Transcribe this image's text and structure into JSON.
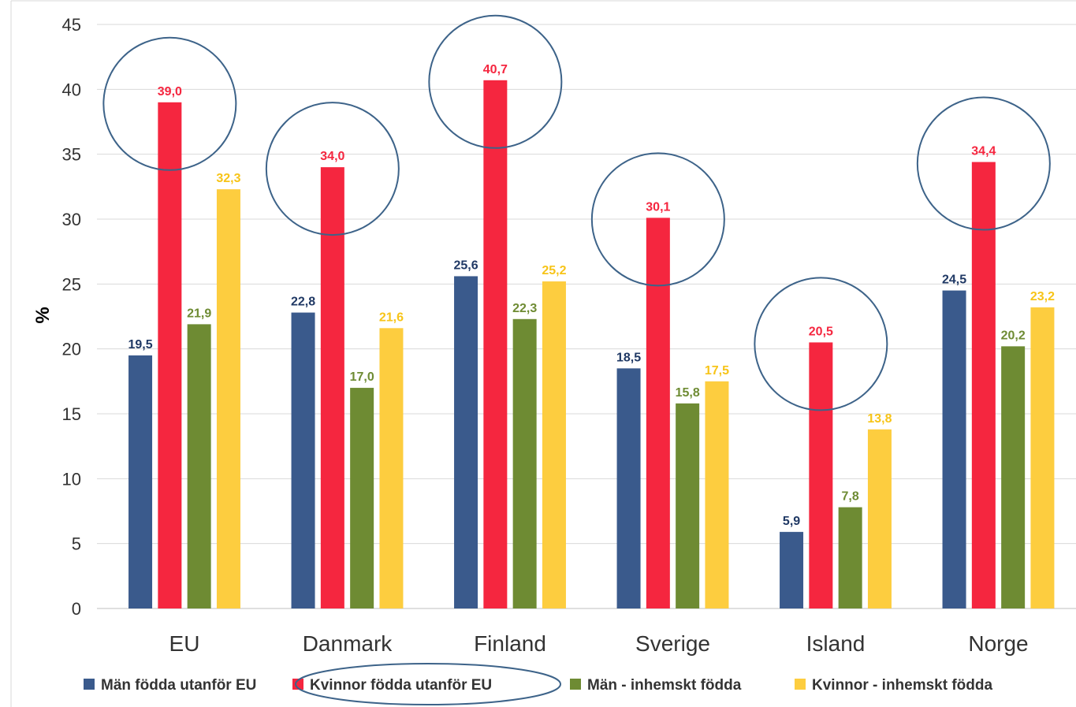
{
  "chart_data": {
    "type": "bar",
    "title": "",
    "xlabel": "",
    "ylabel": "%",
    "ylim": [
      0,
      45
    ],
    "yticks": [
      0,
      5,
      10,
      15,
      20,
      25,
      30,
      35,
      40,
      45
    ],
    "grid": true,
    "legend_position": "bottom",
    "categories": [
      "EU",
      "Danmark",
      "Finland",
      "Sverige",
      "Island",
      "Norge"
    ],
    "series": [
      {
        "name": "Män födda utanför EU",
        "color": "#3a5a8c",
        "label_color": "#1f3864",
        "values": [
          19.5,
          22.8,
          25.6,
          18.5,
          5.9,
          24.5
        ],
        "labels": [
          "19,5",
          "22,8",
          "25,6",
          "18,5",
          "5,9",
          "24,5"
        ]
      },
      {
        "name": "Kvinnor födda utanför EU",
        "color": "#f5263f",
        "label_color": "#f5263f",
        "values": [
          39.0,
          34.0,
          40.7,
          30.1,
          20.5,
          34.4
        ],
        "labels": [
          "39,0",
          "34,0",
          "40,7",
          "30,1",
          "20,5",
          "34,4"
        ]
      },
      {
        "name": "Män - inhemskt födda",
        "color": "#6e8b33",
        "label_color": "#6e8b33",
        "values": [
          21.9,
          17.0,
          22.3,
          15.8,
          7.8,
          20.2
        ],
        "labels": [
          "21,9",
          "17,0",
          "22,3",
          "15,8",
          "7,8",
          "20,2"
        ]
      },
      {
        "name": "Kvinnor - inhemskt födda",
        "color": "#fdcd3f",
        "label_color": "#f7c418",
        "values": [
          32.3,
          21.6,
          25.2,
          17.5,
          13.8,
          23.2
        ],
        "labels": [
          "32,3",
          "21,6",
          "25,2",
          "17,5",
          "13,8",
          "23,2"
        ]
      }
    ],
    "annotations": {
      "circled_series": "Kvinnor födda utanför EU",
      "circle_color": "#3d6389"
    }
  }
}
